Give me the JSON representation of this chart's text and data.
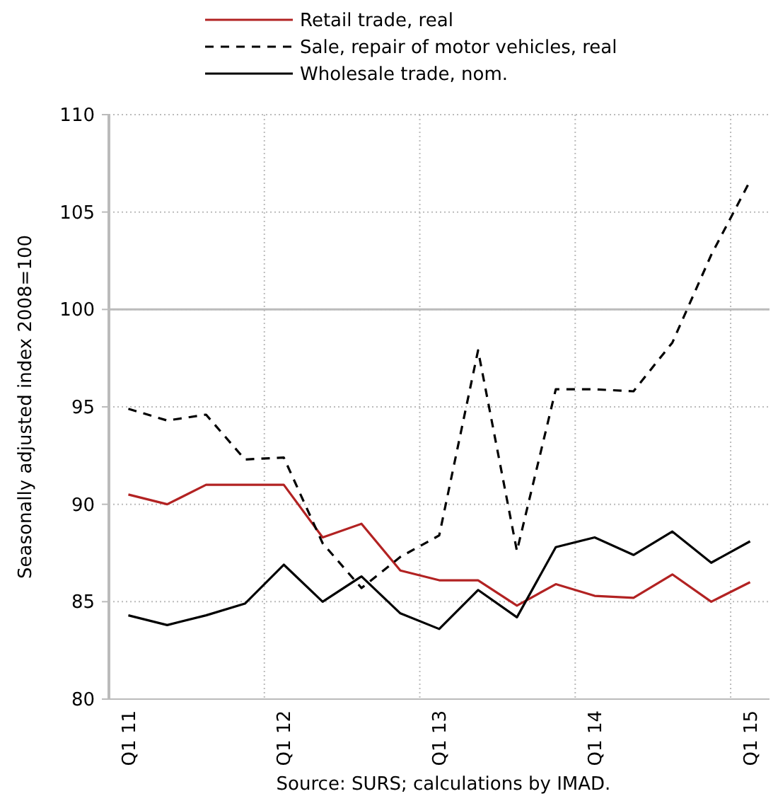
{
  "chart_data": {
    "type": "line",
    "ylabel": "Seasonally adjusted index 2008=100",
    "categories": [
      "Q1 11",
      null,
      null,
      null,
      "Q1 12",
      null,
      null,
      null,
      "Q1 13",
      null,
      null,
      null,
      "Q1 14",
      null,
      null,
      null,
      "Q1 15"
    ],
    "series": [
      {
        "name": "Retail trade, real",
        "color": "#b22222",
        "line_style": "solid",
        "values": [
          90.5,
          90.0,
          91.0,
          91.0,
          91.0,
          88.3,
          89.0,
          86.6,
          86.1,
          86.1,
          84.8,
          85.9,
          85.3,
          85.2,
          86.4,
          85.0,
          86.0
        ]
      },
      {
        "name": "Sale, repair of motor vehicles, real",
        "color": "#000000",
        "line_style": "dashed",
        "values": [
          94.9,
          94.3,
          94.6,
          92.3,
          92.4,
          88.0,
          85.7,
          87.3,
          88.4,
          97.9,
          87.6,
          95.9,
          95.9,
          95.8,
          98.3,
          102.8,
          106.6
        ]
      },
      {
        "name": "Wholesale trade, nom.",
        "color": "#000000",
        "line_style": "solid",
        "values": [
          84.3,
          83.8,
          84.3,
          84.9,
          86.9,
          85.0,
          86.3,
          84.4,
          83.6,
          85.6,
          84.2,
          87.8,
          88.3,
          87.4,
          88.6,
          87.0,
          88.1
        ]
      }
    ],
    "ylim": [
      80,
      110
    ],
    "yticks": [
      80,
      85,
      90,
      95,
      100,
      105,
      110
    ],
    "grid": true,
    "legend": "top",
    "ref_lines": [
      {
        "axis": "y",
        "value": 100,
        "color": "#bbbbbb"
      }
    ],
    "annotations": [
      "Source: SURS; calculations by IMAD."
    ]
  }
}
